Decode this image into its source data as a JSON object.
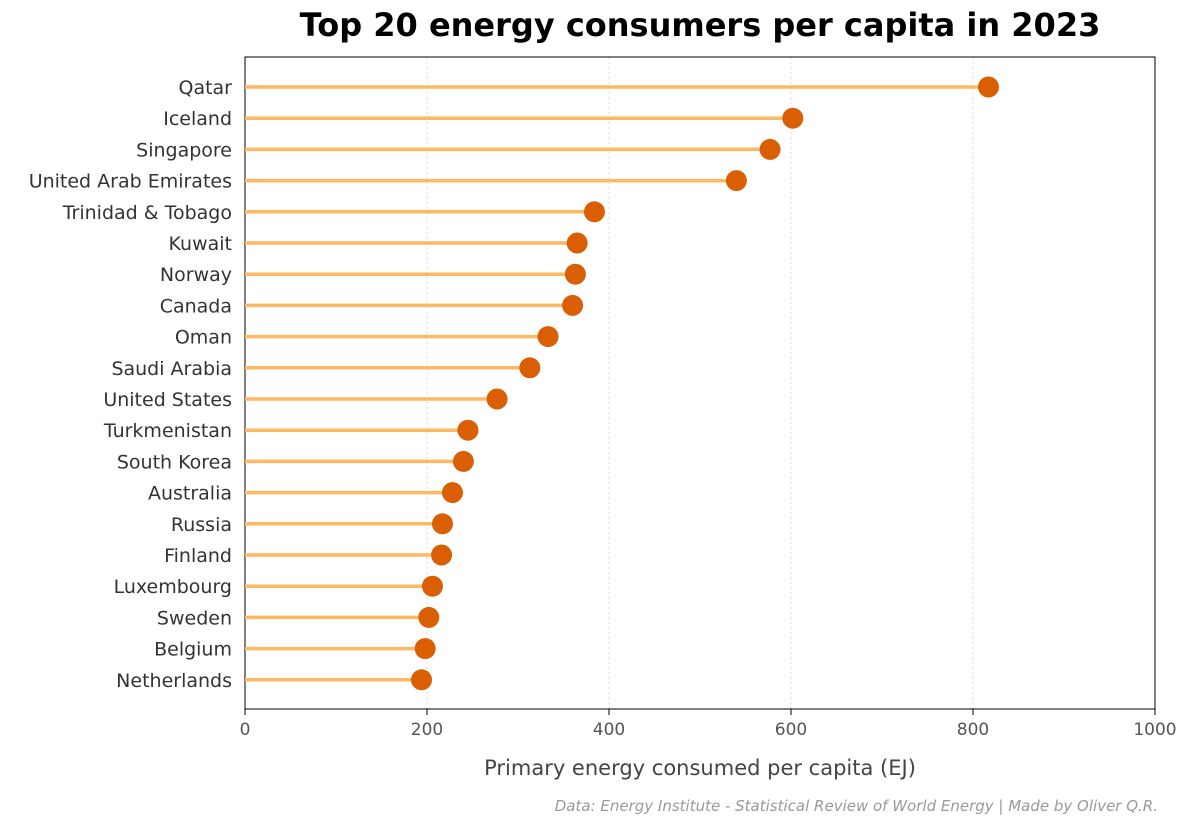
{
  "chart_data": {
    "type": "lollipop",
    "title": "Top 20 energy consumers per capita in 2023",
    "xlabel": "Primary energy consumed per capita (EJ)",
    "ylabel": "",
    "xlim": [
      0,
      1000
    ],
    "xticks": [
      0,
      200,
      400,
      600,
      800,
      1000
    ],
    "grid": "vertical dotted",
    "categories": [
      "Qatar",
      "Iceland",
      "Singapore",
      "United Arab Emirates",
      "Trinidad & Tobago",
      "Kuwait",
      "Norway",
      "Canada",
      "Oman",
      "Saudi Arabia",
      "United States",
      "Turkmenistan",
      "South Korea",
      "Australia",
      "Russia",
      "Finland",
      "Luxembourg",
      "Sweden",
      "Belgium",
      "Netherlands"
    ],
    "values": [
      817,
      602,
      577,
      540,
      384,
      365,
      363,
      360,
      333,
      313,
      277,
      245,
      240,
      228,
      217,
      216,
      206,
      202,
      198,
      194
    ],
    "source": "Data: Energy Institute - Statistical Review of World Energy | Made by Oliver Q.R.",
    "colors": {
      "stem": "#fdb863",
      "marker": "#d95f02",
      "text": "#333333",
      "tick": "#555555",
      "source": "#999999"
    }
  }
}
